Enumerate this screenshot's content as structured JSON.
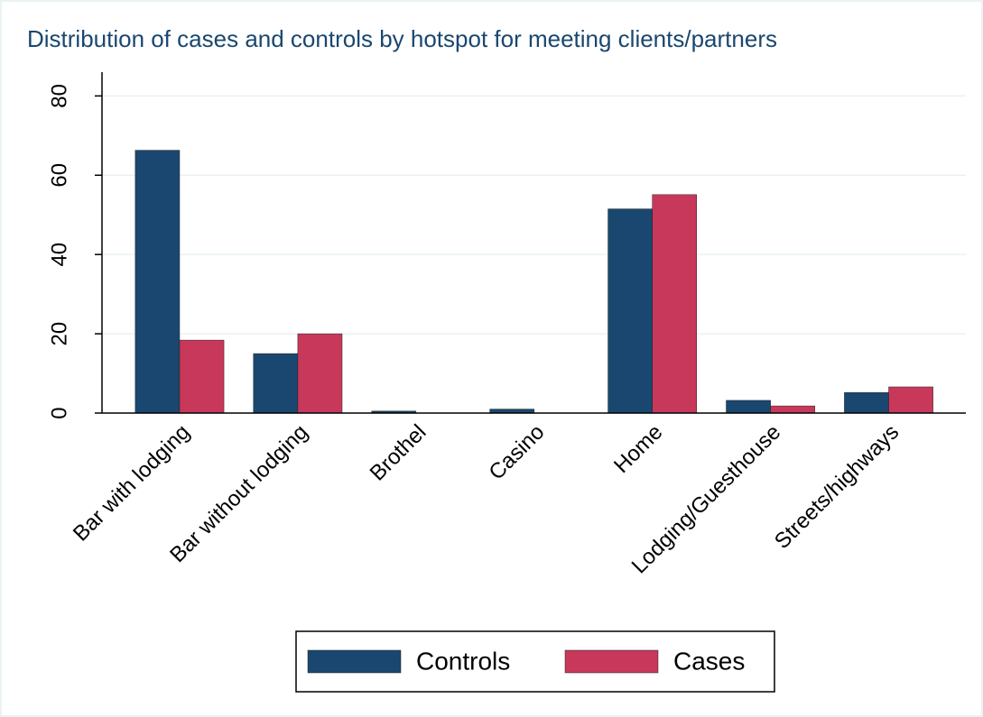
{
  "chart_data": {
    "type": "bar",
    "title": "Distribution of cases and controls by hotspot for meeting clients/partners",
    "categories": [
      "Bar with lodging",
      "Bar without lodging",
      "Brothel",
      "Casino",
      "Home",
      "Lodging/Guesthouse",
      "Streets/highways"
    ],
    "series": [
      {
        "name": "Controls",
        "color": "#1a476f",
        "values": [
          66.3,
          15,
          0.5,
          1,
          51.5,
          3.2,
          5.2
        ]
      },
      {
        "name": "Cases",
        "color": "#c8385a",
        "values": [
          18.4,
          20,
          0,
          0,
          55.1,
          1.8,
          6.6
        ]
      }
    ],
    "ylim": [
      0,
      86
    ],
    "yticks": [
      0,
      20,
      40,
      60,
      80
    ],
    "grid": true,
    "legend": "bottom"
  }
}
